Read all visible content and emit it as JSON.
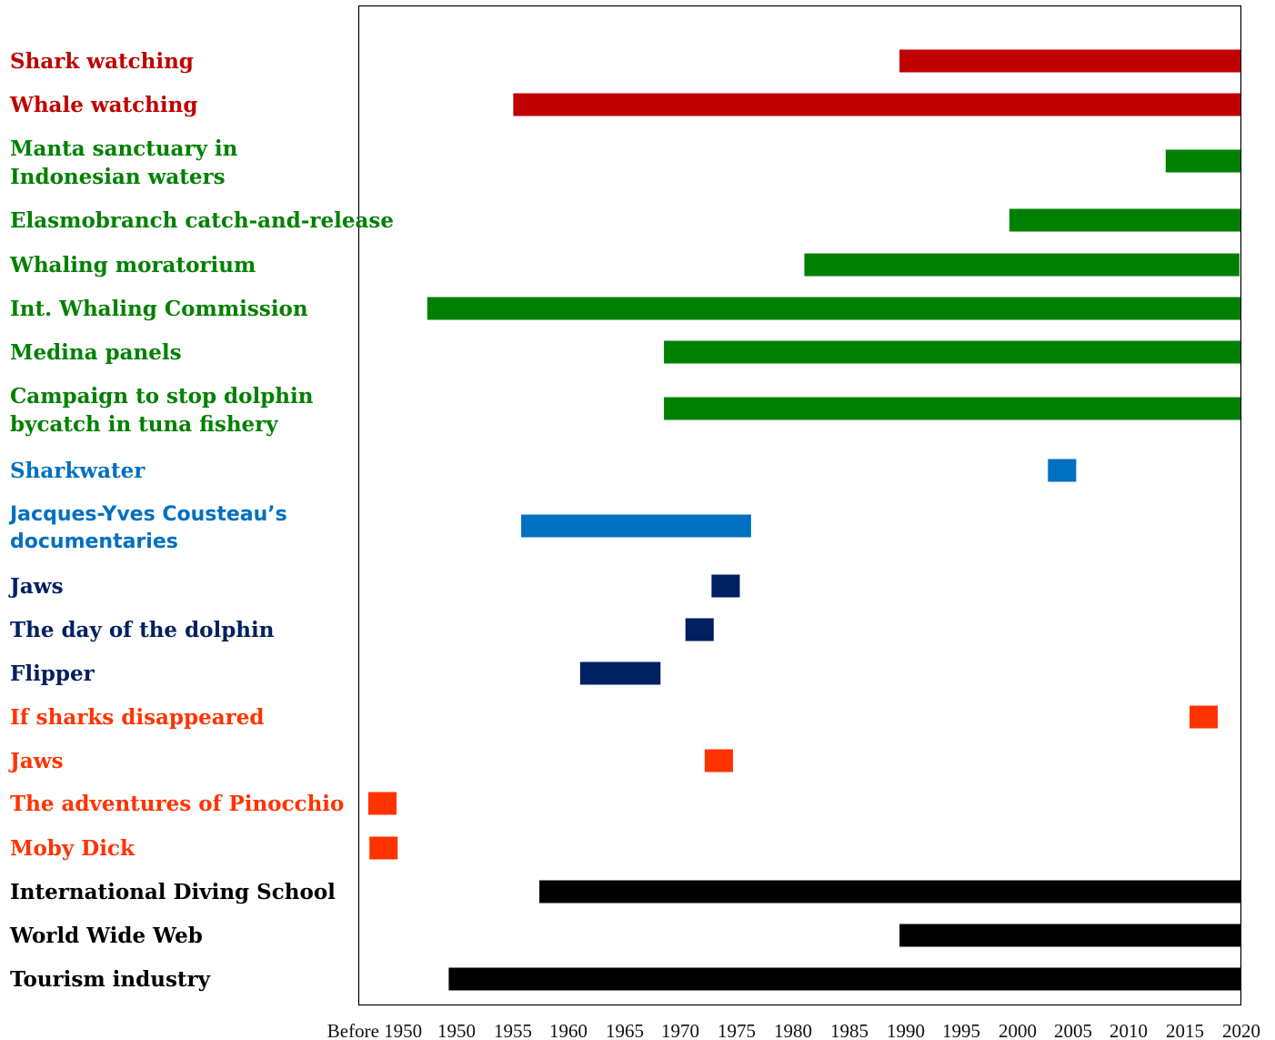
{
  "chart_data": {
    "type": "bar",
    "orientation": "horizontal-timeline",
    "x_tick_labels": [
      "Before 1950",
      "1950",
      "1955",
      "1960",
      "1965",
      "1970",
      "1975",
      "1980",
      "1985",
      "1990",
      "1995",
      "2000",
      "2005",
      "2010",
      "2015",
      "2020"
    ],
    "xlim": [
      1943,
      2020
    ],
    "grid": false,
    "legend": "none",
    "rows": [
      {
        "label": [
          "Shark watching"
        ],
        "start": 1989.9,
        "end": 2020,
        "color": "#c00000",
        "font": "serif"
      },
      {
        "label": [
          "Whale watching"
        ],
        "start": 1955.8,
        "end": 2020,
        "color": "#c00000",
        "font": "serif"
      },
      {
        "label": [
          "Manta sanctuary in",
          "Indonesian waters"
        ],
        "start": 2013.4,
        "end": 2020,
        "color": "#008000",
        "font": "serif"
      },
      {
        "label": [
          "Elasmobranch catch-and-release"
        ],
        "start": 1999.6,
        "end": 2020,
        "color": "#008000",
        "font": "serif"
      },
      {
        "label": [
          "Whaling moratorium"
        ],
        "start": 1981.5,
        "end": 2019.9,
        "color": "#008000",
        "font": "serif"
      },
      {
        "label": [
          "Int. Whaling Commission"
        ],
        "start": 1948.2,
        "end": 2020,
        "color": "#008000",
        "font": "serif"
      },
      {
        "label": [
          "Medina panels"
        ],
        "start": 1969.1,
        "end": 2020,
        "color": "#008000",
        "font": "serif"
      },
      {
        "label": [
          "Campaign to stop dolphin",
          "bycatch in tuna fishery"
        ],
        "start": 1969.1,
        "end": 2020,
        "color": "#008000",
        "font": "serif"
      },
      {
        "label": [
          "Sharkwater"
        ],
        "start": 2003.0,
        "end": 2005.5,
        "color": "#0070c0",
        "font": "serif"
      },
      {
        "label": [
          "Jacques-Yves Cousteau’s",
          "documentaries"
        ],
        "start": 1956.5,
        "end": 1976.8,
        "color": "#0070c0",
        "font": "sans"
      },
      {
        "label": [
          "Jaws"
        ],
        "start": 1973.3,
        "end": 1975.8,
        "color": "#002060",
        "font": "serif"
      },
      {
        "label": [
          "The day of the dolphin"
        ],
        "start": 1971.0,
        "end": 1973.5,
        "color": "#002060",
        "font": "serif"
      },
      {
        "label": [
          "Flipper"
        ],
        "start": 1961.7,
        "end": 1968.8,
        "color": "#002060",
        "font": "serif"
      },
      {
        "label": [
          "If sharks disappeared"
        ],
        "start": 2015.5,
        "end": 2018.0,
        "color": "#ff3300",
        "font": "serif"
      },
      {
        "label": [
          "Jaws"
        ],
        "start": 1972.7,
        "end": 1975.2,
        "color": "#ff3300",
        "font": "serif"
      },
      {
        "label": [
          "The adventures of Pinocchio"
        ],
        "start": 1943.0,
        "end": 1945.5,
        "color": "#ff3300",
        "font": "serif"
      },
      {
        "label": [
          "Moby Dick"
        ],
        "start": 1943.1,
        "end": 1945.6,
        "color": "#ff3300",
        "font": "serif"
      },
      {
        "label": [
          "International Diving School"
        ],
        "start": 1958.1,
        "end": 2020,
        "color": "#000000",
        "font": "serif"
      },
      {
        "label": [
          "World Wide Web"
        ],
        "start": 1989.9,
        "end": 2020,
        "color": "#000000",
        "font": "serif"
      },
      {
        "label": [
          "Tourism industry"
        ],
        "start": 1950.1,
        "end": 2020,
        "color": "#000000",
        "font": "serif"
      }
    ]
  }
}
